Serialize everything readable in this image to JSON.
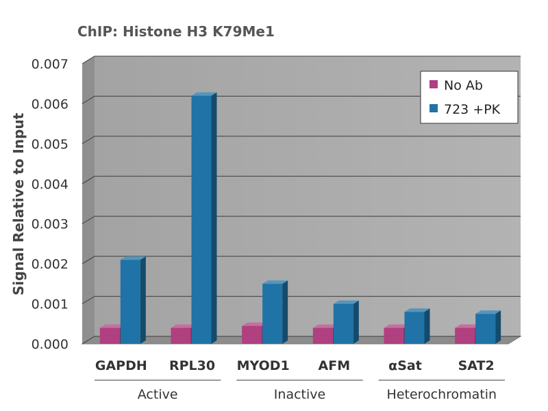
{
  "chart_data": {
    "type": "bar",
    "title": "ChIP: Histone H3 K79Me1",
    "xlabel": "",
    "ylabel": "Signal Relative to Input",
    "ylim": [
      0,
      0.007
    ],
    "yticks": [
      "0.000",
      "0.001",
      "0.002",
      "0.003",
      "0.004",
      "0.005",
      "0.006",
      "0.007"
    ],
    "grid": true,
    "legend_position": "top-right",
    "categories": [
      "GAPDH",
      "RPL30",
      "MYOD1",
      "AFM",
      "αSat",
      "SAT2"
    ],
    "groups": [
      {
        "label": "Active",
        "categories": [
          "GAPDH",
          "RPL30"
        ]
      },
      {
        "label": "Inactive",
        "categories": [
          "MYOD1",
          "AFM"
        ]
      },
      {
        "label": "Heterochromatin",
        "categories": [
          "αSat",
          "SAT2"
        ]
      }
    ],
    "series": [
      {
        "name": "No Ab",
        "color": "#b0407f",
        "values": [
          0.0004,
          0.0004,
          0.00045,
          0.0004,
          0.0004,
          0.0004
        ]
      },
      {
        "name": "723 +PK",
        "color": "#1f73a6",
        "values": [
          0.0021,
          0.0062,
          0.0015,
          0.001,
          0.0008,
          0.00075
        ]
      }
    ]
  }
}
